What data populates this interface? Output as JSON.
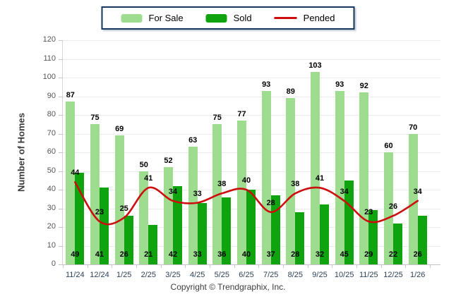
{
  "legend": {
    "items": [
      {
        "label": "For Sale",
        "type": "swatch",
        "color": "#9EDD90"
      },
      {
        "label": "Sold",
        "type": "swatch",
        "color": "#10A310"
      },
      {
        "label": "Pended",
        "type": "line",
        "color": "#CC0E0E"
      }
    ]
  },
  "footer": {
    "copyright": "Copyright © Trendgraphix, Inc."
  },
  "chart_data": {
    "type": "bar",
    "title": "",
    "xlabel": "",
    "ylabel": "Number of Homes",
    "ylim": [
      0,
      120
    ],
    "ytick_step": 10,
    "grid": true,
    "legend_position": "top-center",
    "categories": [
      "11/24",
      "12/24",
      "1/25",
      "2/25",
      "3/25",
      "4/25",
      "5/25",
      "6/25",
      "7/25",
      "8/25",
      "9/25",
      "10/25",
      "11/25",
      "12/25",
      "1/26"
    ],
    "series": [
      {
        "name": "For Sale",
        "type": "bar",
        "color": "#9EDD90",
        "values": [
          87,
          75,
          69,
          50,
          52,
          63,
          75,
          77,
          93,
          89,
          103,
          93,
          92,
          60,
          70
        ]
      },
      {
        "name": "Sold",
        "type": "bar",
        "color": "#10A310",
        "values": [
          49,
          41,
          26,
          21,
          42,
          33,
          36,
          40,
          37,
          28,
          32,
          45,
          29,
          22,
          26
        ]
      },
      {
        "name": "Pended",
        "type": "line",
        "color": "#CC0E0E",
        "values": [
          44,
          23,
          25,
          41,
          34,
          33,
          38,
          40,
          28,
          38,
          41,
          34,
          23,
          26,
          34
        ]
      }
    ]
  }
}
